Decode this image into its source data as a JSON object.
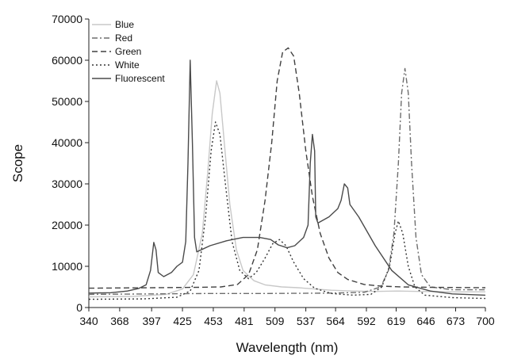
{
  "chart_data": {
    "type": "line",
    "title": "",
    "xlabel": "Wavelength (nm)",
    "ylabel": "Scope",
    "xlim": [
      340,
      700
    ],
    "ylim": [
      0,
      70000
    ],
    "x_ticks": [
      340,
      368,
      397,
      425,
      453,
      481,
      509,
      537,
      564,
      592,
      619,
      646,
      673,
      700
    ],
    "y_ticks": [
      0,
      10000,
      20000,
      30000,
      40000,
      50000,
      60000,
      70000
    ],
    "legend_position": "top-left",
    "series": [
      {
        "name": "Blue",
        "color": "#c8c8c8",
        "dash": "",
        "points": [
          [
            340,
            2600
          ],
          [
            380,
            2700
          ],
          [
            410,
            3200
          ],
          [
            425,
            4500
          ],
          [
            435,
            8000
          ],
          [
            443,
            18000
          ],
          [
            448,
            33000
          ],
          [
            452,
            47000
          ],
          [
            456,
            55000
          ],
          [
            459,
            52000
          ],
          [
            463,
            40000
          ],
          [
            468,
            25000
          ],
          [
            474,
            14000
          ],
          [
            480,
            9000
          ],
          [
            490,
            6500
          ],
          [
            500,
            5500
          ],
          [
            515,
            5000
          ],
          [
            530,
            4800
          ],
          [
            545,
            4500
          ],
          [
            560,
            4200
          ],
          [
            580,
            4000
          ],
          [
            600,
            3900
          ],
          [
            620,
            4000
          ],
          [
            640,
            3900
          ],
          [
            670,
            3800
          ],
          [
            700,
            3800
          ]
        ]
      },
      {
        "name": "Red",
        "color": "#6e6e6e",
        "dash": "7,3,2,3",
        "points": [
          [
            340,
            3200
          ],
          [
            400,
            3300
          ],
          [
            450,
            3400
          ],
          [
            500,
            3400
          ],
          [
            560,
            3500
          ],
          [
            590,
            3700
          ],
          [
            605,
            5000
          ],
          [
            612,
            9000
          ],
          [
            617,
            18000
          ],
          [
            621,
            35000
          ],
          [
            624,
            52000
          ],
          [
            627,
            58000
          ],
          [
            630,
            52000
          ],
          [
            633,
            35000
          ],
          [
            637,
            17000
          ],
          [
            642,
            8000
          ],
          [
            650,
            5000
          ],
          [
            670,
            4300
          ],
          [
            700,
            4300
          ]
        ]
      },
      {
        "name": "Green",
        "color": "#404040",
        "dash": "7,4",
        "points": [
          [
            340,
            4700
          ],
          [
            400,
            4800
          ],
          [
            440,
            4900
          ],
          [
            460,
            5000
          ],
          [
            475,
            5600
          ],
          [
            485,
            8000
          ],
          [
            493,
            14000
          ],
          [
            500,
            26000
          ],
          [
            506,
            40000
          ],
          [
            511,
            55000
          ],
          [
            516,
            62000
          ],
          [
            521,
            63000
          ],
          [
            526,
            61000
          ],
          [
            531,
            52000
          ],
          [
            537,
            38000
          ],
          [
            543,
            27000
          ],
          [
            550,
            18000
          ],
          [
            558,
            12000
          ],
          [
            566,
            8500
          ],
          [
            575,
            6800
          ],
          [
            590,
            5600
          ],
          [
            605,
            5200
          ],
          [
            625,
            5000
          ],
          [
            650,
            4900
          ],
          [
            700,
            4800
          ]
        ]
      },
      {
        "name": "White",
        "color": "#333333",
        "dash": "2,3",
        "points": [
          [
            340,
            2000
          ],
          [
            390,
            2100
          ],
          [
            420,
            2500
          ],
          [
            432,
            4000
          ],
          [
            440,
            9000
          ],
          [
            446,
            22000
          ],
          [
            451,
            38000
          ],
          [
            455,
            45000
          ],
          [
            459,
            42000
          ],
          [
            464,
            30000
          ],
          [
            470,
            16000
          ],
          [
            477,
            9000
          ],
          [
            485,
            7000
          ],
          [
            492,
            8500
          ],
          [
            500,
            12000
          ],
          [
            507,
            15500
          ],
          [
            513,
            16500
          ],
          [
            519,
            15000
          ],
          [
            526,
            11000
          ],
          [
            535,
            7000
          ],
          [
            545,
            4700
          ],
          [
            560,
            3400
          ],
          [
            580,
            3000
          ],
          [
            596,
            3200
          ],
          [
            606,
            5000
          ],
          [
            613,
            10000
          ],
          [
            618,
            18000
          ],
          [
            621,
            21000
          ],
          [
            625,
            18000
          ],
          [
            630,
            10000
          ],
          [
            636,
            5000
          ],
          [
            645,
            3000
          ],
          [
            670,
            2400
          ],
          [
            700,
            2200
          ]
        ]
      },
      {
        "name": "Fluorescent",
        "color": "#4a4a4a",
        "dash": "",
        "points": [
          [
            340,
            3500
          ],
          [
            360,
            3600
          ],
          [
            375,
            4000
          ],
          [
            385,
            4600
          ],
          [
            392,
            5500
          ],
          [
            396,
            9000
          ],
          [
            399,
            15800
          ],
          [
            401,
            14000
          ],
          [
            403,
            8500
          ],
          [
            408,
            7500
          ],
          [
            415,
            8500
          ],
          [
            420,
            10000
          ],
          [
            425,
            11000
          ],
          [
            428,
            16000
          ],
          [
            430,
            35000
          ],
          [
            432,
            60000
          ],
          [
            434,
            40000
          ],
          [
            436,
            17000
          ],
          [
            438,
            13500
          ],
          [
            450,
            15000
          ],
          [
            465,
            16200
          ],
          [
            480,
            17000
          ],
          [
            495,
            17000
          ],
          [
            505,
            16500
          ],
          [
            512,
            15200
          ],
          [
            520,
            14500
          ],
          [
            527,
            15000
          ],
          [
            535,
            17000
          ],
          [
            539,
            20000
          ],
          [
            541,
            35000
          ],
          [
            543,
            42000
          ],
          [
            545,
            38000
          ],
          [
            546,
            22000
          ],
          [
            548,
            20500
          ],
          [
            558,
            22000
          ],
          [
            566,
            24000
          ],
          [
            569,
            26000
          ],
          [
            572,
            30000
          ],
          [
            575,
            29000
          ],
          [
            577,
            25000
          ],
          [
            585,
            22000
          ],
          [
            600,
            15000
          ],
          [
            615,
            9000
          ],
          [
            630,
            5500
          ],
          [
            650,
            4000
          ],
          [
            670,
            3300
          ],
          [
            700,
            3000
          ]
        ]
      }
    ]
  }
}
